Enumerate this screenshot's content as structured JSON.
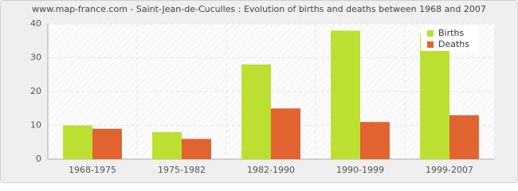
{
  "chart_data": {
    "type": "bar",
    "title": "www.map-france.com - Saint-Jean-de-Cuculles : Evolution of births and deaths between 1968 and 2007",
    "categories": [
      "1968-1975",
      "1975-1982",
      "1982-1990",
      "1990-1999",
      "1999-2007"
    ],
    "series": [
      {
        "name": "Births",
        "color": "#bbe032",
        "values": [
          10,
          8,
          28,
          38,
          37
        ]
      },
      {
        "name": "Deaths",
        "color": "#e06330",
        "values": [
          9,
          6,
          15,
          11,
          13
        ]
      }
    ],
    "ylim": [
      0,
      40
    ],
    "yticks": [
      0,
      10,
      20,
      30,
      40
    ],
    "grid": true,
    "legend": "top-right"
  }
}
